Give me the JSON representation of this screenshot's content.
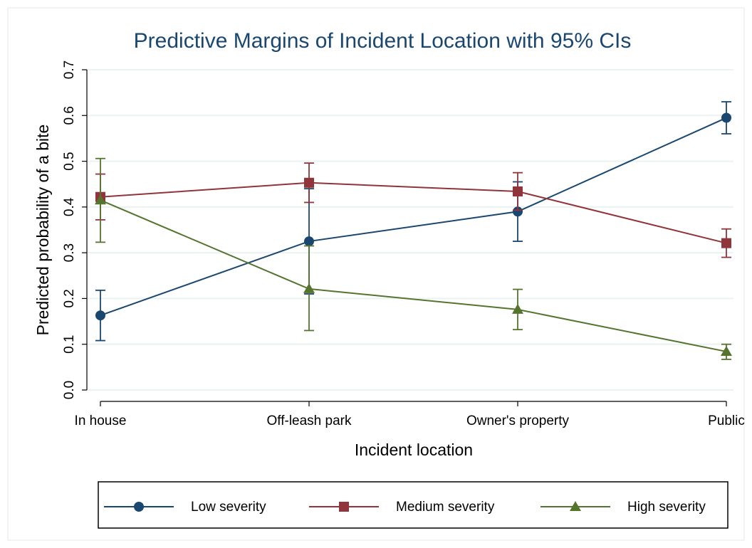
{
  "chart_data": {
    "type": "line",
    "title": "Predictive Margins of Incident Location with 95% CIs",
    "x_label": "Incident location",
    "y_label": "Predicted probability of a bite",
    "categories": [
      "In house",
      "Off-leash park",
      "Owner's property",
      "Public"
    ],
    "ylim": [
      0,
      0.7
    ],
    "yticks": [
      {
        "value": 0,
        "label": "0.0"
      },
      0.1,
      0.2,
      0.3,
      0.4,
      0.5,
      0.6,
      0.7
    ],
    "grid": true,
    "legend": "bottom",
    "series": [
      {
        "name": "Low severity",
        "color": "#1a476f",
        "marker": "circle",
        "values": [
          0.163,
          0.325,
          0.39,
          0.595
        ],
        "lower": [
          0.108,
          0.21,
          0.325,
          0.56
        ],
        "upper": [
          0.218,
          0.44,
          0.455,
          0.63
        ]
      },
      {
        "name": "Medium severity",
        "color": "#90353b",
        "marker": "square",
        "values": [
          0.422,
          0.453,
          0.434,
          0.321
        ],
        "lower": [
          0.372,
          0.41,
          0.393,
          0.29
        ],
        "upper": [
          0.472,
          0.496,
          0.475,
          0.352
        ]
      },
      {
        "name": "High severity",
        "color": "#55752f",
        "marker": "triangle",
        "values": [
          0.415,
          0.221,
          0.176,
          0.084
        ],
        "lower": [
          0.323,
          0.13,
          0.132,
          0.067
        ],
        "upper": [
          0.506,
          0.315,
          0.22,
          0.1
        ]
      }
    ]
  }
}
